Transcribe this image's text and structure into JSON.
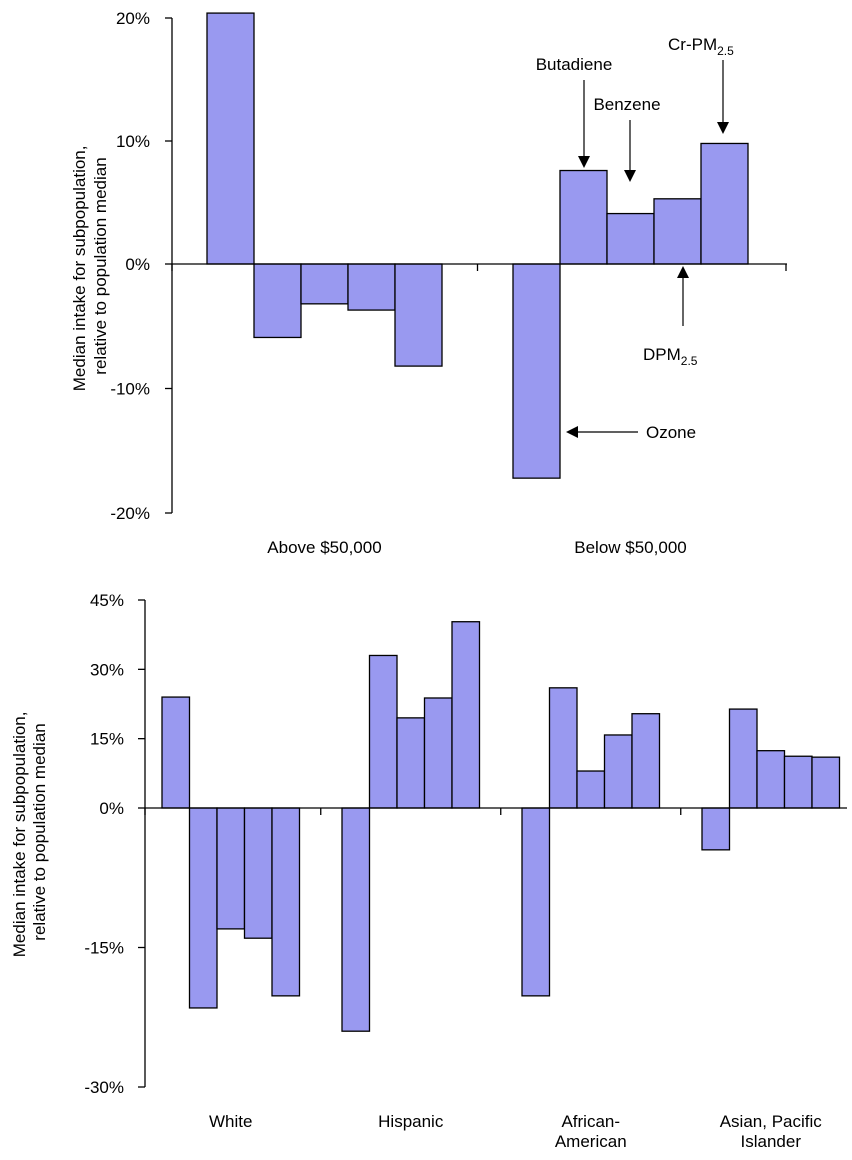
{
  "colors": {
    "bar_fill": "#9999f0",
    "bar_stroke": "#000000"
  },
  "chart_data": [
    {
      "type": "bar",
      "ylabel": "Median intake for subpopulation,\nrelative to population  median",
      "ylim": [
        -20,
        20
      ],
      "ytick_labels": [
        "20%",
        "10%",
        "0%",
        "-10%",
        "-20%"
      ],
      "ytick_values": [
        20,
        10,
        0,
        -10,
        -20
      ],
      "categories": [
        "Above $50,000",
        "Below $50,000"
      ],
      "values": [
        [
          20.4,
          -5.9,
          -3.2,
          -3.7,
          -8.2
        ],
        [
          -17.2,
          7.6,
          4.1,
          5.3,
          9.8
        ]
      ],
      "annotations": [
        {
          "text": "Butadiene"
        },
        {
          "text": "Benzene"
        },
        {
          "text": "Cr-PM",
          "sub": "2.5"
        },
        {
          "text": "DPM",
          "sub": "2.5"
        },
        {
          "text": "Ozone"
        }
      ]
    },
    {
      "type": "bar",
      "ylabel": "Median intake for subpopulation,\nrelative to population median",
      "ylim": [
        -30,
        45
      ],
      "ytick_labels": [
        "45%",
        "30%",
        "15%",
        "0%",
        "-15%",
        "-30%"
      ],
      "ytick_values": [
        45,
        30,
        15,
        0,
        -15,
        -30
      ],
      "categories": [
        "White",
        "Hispanic",
        "African-\nAmerican",
        "Asian, Pacific\nIslander"
      ],
      "values": [
        [
          24,
          -21.5,
          -13,
          -14,
          -20.2
        ],
        [
          -24,
          33,
          19.5,
          23.8,
          40.3
        ],
        [
          -20.2,
          26,
          8,
          15.8,
          20.4
        ],
        [
          -4.5,
          21.4,
          12.4,
          11.2,
          11
        ]
      ]
    }
  ]
}
